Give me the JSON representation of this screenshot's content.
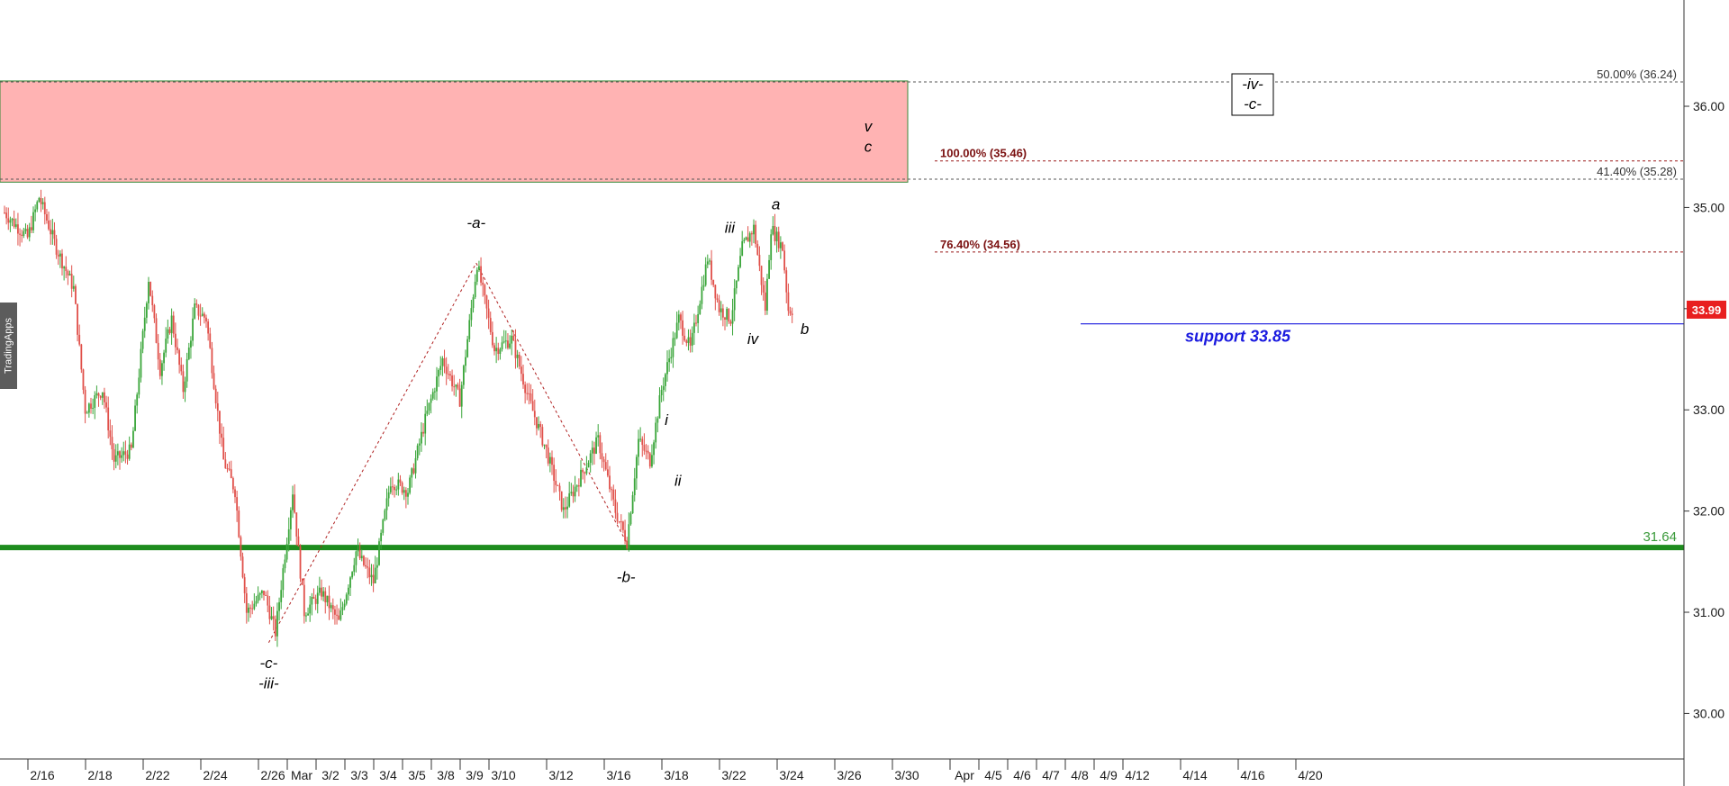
{
  "watermark": "TradingApps",
  "chart_data": {
    "type": "candlestick",
    "x_ticks": [
      "2/16",
      "2/18",
      "2/22",
      "2/24",
      "2/26",
      "Mar",
      "3/2",
      "3/3",
      "3/4",
      "3/5",
      "3/8",
      "3/9",
      "3/10",
      "3/12",
      "3/16",
      "3/18",
      "3/22",
      "3/24",
      "3/26",
      "3/30",
      "Apr",
      "4/5",
      "4/6",
      "4/7",
      "4/8",
      "4/9",
      "4/12",
      "4/14",
      "4/16",
      "4/20"
    ],
    "y_ticks": [
      30.0,
      31.0,
      32.0,
      33.0,
      34.0,
      35.0,
      36.0
    ],
    "ylim": [
      29.55,
      37.05
    ],
    "last_price": "33.99",
    "price_path": [
      [
        0,
        34.95
      ],
      [
        4,
        34.7
      ],
      [
        6,
        35.1
      ],
      [
        9,
        34.6
      ],
      [
        12,
        34.2
      ],
      [
        14,
        33.0
      ],
      [
        17,
        33.2
      ],
      [
        19,
        32.5
      ],
      [
        22,
        32.6
      ],
      [
        25,
        34.3
      ],
      [
        27,
        33.4
      ],
      [
        29,
        33.9
      ],
      [
        31,
        33.2
      ],
      [
        33,
        34.0
      ],
      [
        35,
        33.9
      ],
      [
        38,
        32.5
      ],
      [
        40,
        32.2
      ],
      [
        42,
        31.0
      ],
      [
        45,
        31.2
      ],
      [
        47,
        30.8
      ],
      [
        50,
        32.2
      ],
      [
        52,
        31.0
      ],
      [
        55,
        31.2
      ],
      [
        58,
        30.9
      ],
      [
        61,
        31.6
      ],
      [
        64,
        31.3
      ],
      [
        67,
        32.3
      ],
      [
        70,
        32.2
      ],
      [
        73,
        32.9
      ],
      [
        76,
        33.5
      ],
      [
        79,
        33.1
      ],
      [
        82,
        34.45
      ],
      [
        85,
        33.6
      ],
      [
        88,
        33.7
      ],
      [
        91,
        33.1
      ],
      [
        94,
        32.6
      ],
      [
        97,
        32.0
      ],
      [
        100,
        32.35
      ],
      [
        103,
        32.7
      ],
      [
        106,
        32.0
      ],
      [
        108,
        31.7
      ],
      [
        110,
        32.7
      ],
      [
        112,
        32.5
      ],
      [
        114,
        33.2
      ],
      [
        117,
        33.9
      ],
      [
        119,
        33.6
      ],
      [
        122,
        34.5
      ],
      [
        124,
        34.0
      ],
      [
        126,
        33.9
      ],
      [
        128,
        34.6
      ],
      [
        130,
        34.8
      ],
      [
        132,
        34.0
      ],
      [
        133,
        34.8
      ],
      [
        135,
        34.6
      ],
      [
        136,
        33.99
      ]
    ],
    "horizontal_lines": [
      {
        "label": "31.64",
        "value": 31.64,
        "color": "#1e8c1e"
      },
      {
        "label": "support 33.85",
        "value": 33.85,
        "color": "#1a1adf"
      }
    ],
    "fib_levels": [
      {
        "label": "50.00% (36.24)",
        "value": 36.24
      },
      {
        "label": "41.40% (35.28)",
        "value": 35.28
      },
      {
        "label": "100.00% (35.46)",
        "value": 35.46
      },
      {
        "label": "76.40% (34.56)",
        "value": 34.56
      }
    ],
    "resistance_zone": {
      "from": 35.25,
      "to": 36.25
    },
    "wave_labels": [
      {
        "text": "-a-",
        "bar": 82,
        "value": 34.8
      },
      {
        "text": "-b-",
        "bar": 108,
        "value": 31.3
      },
      {
        "text": "-c-",
        "bar": 46,
        "value": 30.45
      },
      {
        "text": "-iii-",
        "bar": 46,
        "value": 30.25
      },
      {
        "text": "i",
        "bar": 115,
        "value": 32.85
      },
      {
        "text": "ii",
        "bar": 117,
        "value": 32.25
      },
      {
        "text": "iii",
        "bar": 126,
        "value": 34.75
      },
      {
        "text": "iv",
        "bar": 130,
        "value": 33.65
      },
      {
        "text": "a",
        "bar": 134,
        "value": 34.98
      },
      {
        "text": "b",
        "bar": 139,
        "value": 33.75
      },
      {
        "text": "v",
        "bar": 150,
        "value": 35.75
      },
      {
        "text": "c",
        "bar": 150,
        "value": 35.55
      }
    ],
    "boxed_labels": [
      "-iv-",
      "-c-"
    ]
  }
}
